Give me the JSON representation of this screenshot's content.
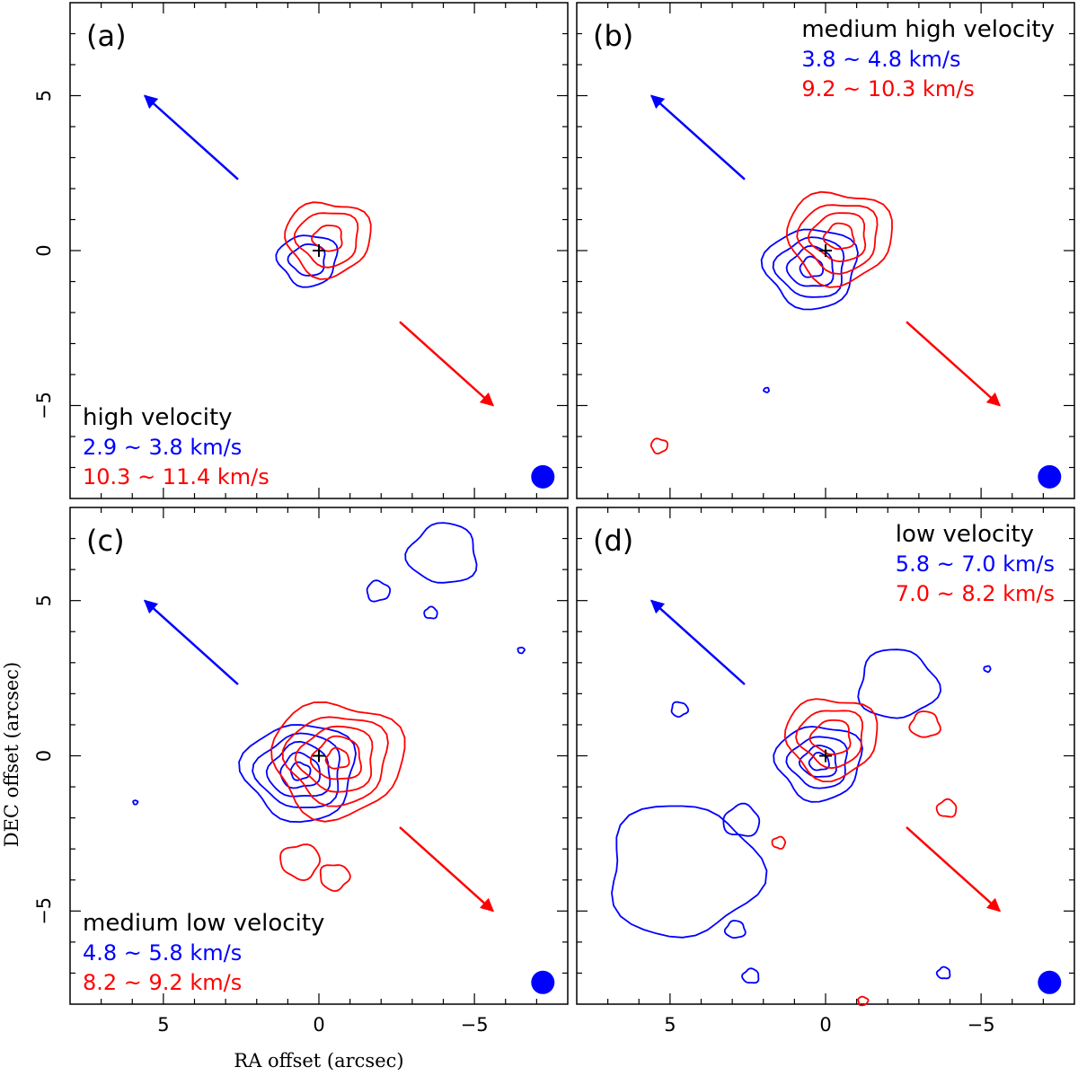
{
  "figure": {
    "xlabel": "RA offset (arcsec)",
    "ylabel": "DEC offset (arcsec)"
  },
  "colors": {
    "blue": "#0000ff",
    "red": "#ff0000",
    "frame": "#000000"
  },
  "chart_data": [
    {
      "type": "contour",
      "panel": "(a)",
      "title": "high velocity",
      "blue_range": "2.9 ~ 3.8 km/s",
      "red_range": "10.3 ~ 11.4 km/s",
      "label_position": "bottom-left",
      "xlim": [
        8,
        -8
      ],
      "ylim": [
        -8,
        8
      ],
      "x_ticks": [
        5,
        0,
        -5
      ],
      "y_ticks": [
        5,
        0,
        -5
      ],
      "x_tick_labels": [
        "5",
        "0",
        "−5"
      ],
      "y_tick_labels": [
        "5",
        "0",
        "−5"
      ],
      "source_position": [
        0,
        0
      ],
      "blue_lobe_arrow": {
        "from": [
          2.6,
          2.3
        ],
        "to": [
          5.6,
          5.0
        ]
      },
      "red_lobe_arrow": {
        "from": [
          -2.6,
          -2.3
        ],
        "to": [
          -5.6,
          -5.0
        ]
      },
      "beam_position": [
        -7.2,
        -7.3
      ],
      "blue_contours": [
        {
          "center": [
            0.35,
            -0.3
          ],
          "radii": [
            0.9,
            0.55
          ],
          "levels": 2
        }
      ],
      "red_contours": [
        {
          "center": [
            -0.3,
            0.4
          ],
          "radii": [
            1.3,
            0.95,
            0.45
          ],
          "levels": 3
        }
      ]
    },
    {
      "type": "contour",
      "panel": "(b)",
      "title": "medium high velocity",
      "blue_range": "3.8 ~ 4.8 km/s",
      "red_range": "9.2 ~ 10.3 km/s",
      "label_position": "top-right",
      "xlim": [
        8,
        -8
      ],
      "ylim": [
        -8,
        8
      ],
      "x_ticks": [
        5,
        0,
        -5
      ],
      "y_ticks": [
        5,
        0,
        -5
      ],
      "source_position": [
        0,
        0
      ],
      "blue_lobe_arrow": {
        "from": [
          2.6,
          2.3
        ],
        "to": [
          5.6,
          5.0
        ]
      },
      "red_lobe_arrow": {
        "from": [
          -2.6,
          -2.3
        ],
        "to": [
          -5.6,
          -5.0
        ]
      },
      "beam_position": [
        -7.2,
        -7.3
      ],
      "blue_contours": [
        {
          "center": [
            0.45,
            -0.55
          ],
          "radii": [
            1.4,
            1.05,
            0.7,
            0.35
          ],
          "levels": 4
        },
        {
          "center": [
            1.9,
            -4.5
          ],
          "radii": [
            0.08
          ],
          "levels": 1
        }
      ],
      "red_contours": [
        {
          "center": [
            -0.45,
            0.45
          ],
          "radii": [
            1.6,
            1.2,
            0.85,
            0.45
          ],
          "levels": 4
        },
        {
          "center": [
            5.35,
            -6.3
          ],
          "radii": [
            0.25
          ],
          "levels": 1
        }
      ]
    },
    {
      "type": "contour",
      "panel": "(c)",
      "title": "medium low velocity",
      "blue_range": "4.8 ~ 5.8 km/s",
      "red_range": "8.2 ~ 9.2 km/s",
      "label_position": "bottom-left",
      "xlim": [
        8,
        -8
      ],
      "ylim": [
        -8,
        8
      ],
      "x_ticks": [
        5,
        0,
        -5
      ],
      "y_ticks": [
        5,
        0,
        -5
      ],
      "source_position": [
        0,
        0
      ],
      "blue_lobe_arrow": {
        "from": [
          2.6,
          2.3
        ],
        "to": [
          5.6,
          5.0
        ]
      },
      "red_lobe_arrow": {
        "from": [
          -2.6,
          -2.3
        ],
        "to": [
          -5.6,
          -5.0
        ]
      },
      "beam_position": [
        -7.2,
        -7.3
      ],
      "blue_contours": [
        {
          "center": [
            0.6,
            -0.5
          ],
          "radii": [
            1.7,
            1.3,
            0.95,
            0.6,
            0.3
          ],
          "levels": 5
        },
        {
          "center": [
            -4.0,
            6.5
          ],
          "radii": [
            1.05
          ],
          "levels": 1
        },
        {
          "center": [
            -1.9,
            5.3
          ],
          "radii": [
            0.35
          ],
          "levels": 1
        },
        {
          "center": [
            -3.6,
            4.6
          ],
          "radii": [
            0.2
          ],
          "levels": 1
        },
        {
          "center": [
            -6.5,
            3.4
          ],
          "radii": [
            0.1
          ],
          "levels": 1
        },
        {
          "center": [
            5.9,
            -1.5
          ],
          "radii": [
            0.07
          ],
          "levels": 1
        }
      ],
      "red_contours": [
        {
          "center": [
            -0.6,
            -0.1
          ],
          "radii": [
            2.0,
            1.55,
            1.15,
            0.75,
            0.35
          ],
          "levels": 5
        },
        {
          "center": [
            0.6,
            -3.4
          ],
          "radii": [
            0.6
          ],
          "levels": 1
        },
        {
          "center": [
            -0.5,
            -3.9
          ],
          "radii": [
            0.45
          ],
          "levels": 1
        }
      ]
    },
    {
      "type": "contour",
      "panel": "(d)",
      "title": "low velocity",
      "blue_range": "5.8 ~ 7.0 km/s",
      "red_range": "7.0 ~ 8.2 km/s",
      "label_position": "top-right",
      "xlim": [
        8,
        -8
      ],
      "ylim": [
        -8,
        8
      ],
      "x_ticks": [
        5,
        0,
        -5
      ],
      "y_ticks": [
        5,
        0,
        -5
      ],
      "source_position": [
        0,
        0
      ],
      "blue_lobe_arrow": {
        "from": [
          2.6,
          2.3
        ],
        "to": [
          5.6,
          5.0
        ]
      },
      "red_lobe_arrow": {
        "from": [
          -2.6,
          -2.3
        ],
        "to": [
          -5.6,
          -5.0
        ]
      },
      "beam_position": [
        -7.2,
        -7.3
      ],
      "blue_contours": [
        {
          "center": [
            0.2,
            -0.2
          ],
          "radii": [
            1.3,
            0.9,
            0.55,
            0.3
          ],
          "levels": 4
        },
        {
          "center": [
            -2.3,
            2.3
          ],
          "radii": [
            1.2
          ],
          "levels": 1
        },
        {
          "center": [
            4.6,
            -3.7
          ],
          "radii": [
            2.3
          ],
          "levels": 1
        },
        {
          "center": [
            2.7,
            -2.1
          ],
          "radii": [
            0.55
          ],
          "levels": 1
        },
        {
          "center": [
            4.7,
            1.5
          ],
          "radii": [
            0.25
          ],
          "levels": 1
        },
        {
          "center": [
            2.9,
            -5.6
          ],
          "radii": [
            0.3
          ],
          "levels": 1
        },
        {
          "center": [
            2.4,
            -7.1
          ],
          "radii": [
            0.25
          ],
          "levels": 1
        },
        {
          "center": [
            -3.8,
            -7.0
          ],
          "radii": [
            0.2
          ],
          "levels": 1
        },
        {
          "center": [
            -5.2,
            2.8
          ],
          "radii": [
            0.1
          ],
          "levels": 1
        }
      ],
      "red_contours": [
        {
          "center": [
            -0.2,
            0.6
          ],
          "radii": [
            1.4,
            1.0,
            0.6
          ],
          "levels": 3
        },
        {
          "center": [
            -3.2,
            1.0
          ],
          "radii": [
            0.45
          ],
          "levels": 1
        },
        {
          "center": [
            -3.9,
            -1.7
          ],
          "radii": [
            0.3
          ],
          "levels": 1
        },
        {
          "center": [
            1.5,
            -2.8
          ],
          "radii": [
            0.2
          ],
          "levels": 1
        },
        {
          "center": [
            -1.2,
            -7.9
          ],
          "radii": [
            0.15
          ],
          "levels": 1
        }
      ]
    }
  ]
}
